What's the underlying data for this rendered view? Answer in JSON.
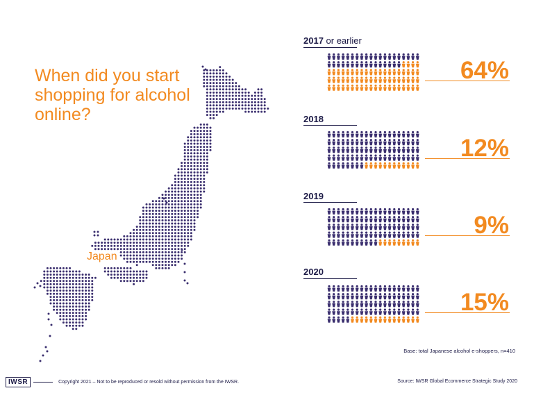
{
  "question": "When did you start shopping for alcohol online?",
  "map_label": "Japan",
  "chart_data": {
    "type": "pictogram",
    "icons_per_group": 100,
    "categories": [
      "2017 or earlier",
      "2018",
      "2019",
      "2020"
    ],
    "values": [
      64,
      12,
      9,
      15
    ],
    "value_labels": [
      "64%",
      "12%",
      "9%",
      "15%"
    ],
    "year_bold": [
      "2017",
      "2018",
      "2019",
      "2020"
    ],
    "year_suffix": [
      " or earlier",
      "",
      "",
      ""
    ],
    "colors": {
      "highlight": "#f28a20",
      "base": "#3a2e6e"
    }
  },
  "base_note": "Base: total Japanese alcohol e-shoppers, n=410",
  "footer": {
    "logo": "IWSR",
    "copyright": "Copyright 2021 – Not to be reproduced or resold without permission from the IWSR.",
    "source": "Source: IWSR Global Ecommerce Strategic Study 2020"
  }
}
